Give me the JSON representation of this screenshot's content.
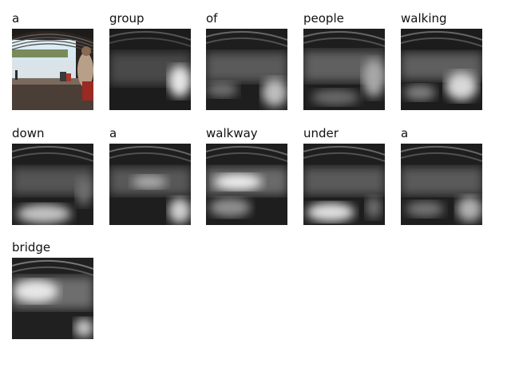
{
  "caption_words": [
    {
      "word": "a",
      "kind": "original"
    },
    {
      "word": "group",
      "kind": "attention"
    },
    {
      "word": "of",
      "kind": "attention"
    },
    {
      "word": "people",
      "kind": "attention"
    },
    {
      "word": "walking",
      "kind": "attention"
    },
    {
      "word": "down",
      "kind": "attention"
    },
    {
      "word": "a",
      "kind": "attention"
    },
    {
      "word": "walkway",
      "kind": "attention"
    },
    {
      "word": "under",
      "kind": "attention"
    },
    {
      "word": "a",
      "kind": "attention"
    },
    {
      "word": "bridge",
      "kind": "attention"
    }
  ]
}
